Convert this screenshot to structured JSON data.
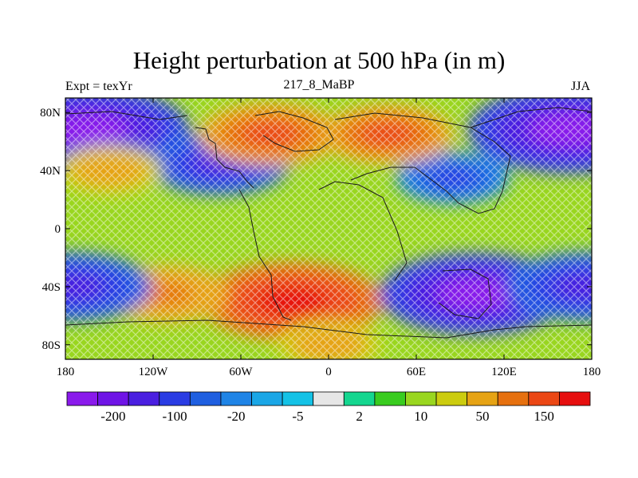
{
  "header": {
    "title": "Height perturbation at 500 hPa (in m)",
    "left": "Expt = texYr",
    "center": "217_8_MaBP",
    "right": "JJA"
  },
  "axes": {
    "x_ticks": [
      {
        "value": -180,
        "label": "180"
      },
      {
        "value": -120,
        "label": "120W"
      },
      {
        "value": -60,
        "label": "60W"
      },
      {
        "value": 0,
        "label": "0"
      },
      {
        "value": 60,
        "label": "60E"
      },
      {
        "value": 120,
        "label": "120E"
      },
      {
        "value": 180,
        "label": "180"
      }
    ],
    "y_ticks": [
      {
        "value": 80,
        "label": "80N"
      },
      {
        "value": 40,
        "label": "40N"
      },
      {
        "value": 0,
        "label": "0"
      },
      {
        "value": -40,
        "label": "40S"
      },
      {
        "value": -80,
        "label": "80S"
      }
    ],
    "lon_range": [
      -180,
      180
    ],
    "lat_range": [
      -90,
      90
    ]
  },
  "colorbar": {
    "colors": [
      "#8a1aeb",
      "#6f14e6",
      "#4a1fe0",
      "#2a3ce3",
      "#1f5fe0",
      "#1f84e6",
      "#1aa6e6",
      "#14c2e6",
      "#e6e6e6",
      "#14d68f",
      "#39cc1f",
      "#99d61f",
      "#cccc0f",
      "#e6a314",
      "#e6700f",
      "#eb4714",
      "#e60f0f"
    ],
    "labels": [
      "-200",
      "-100",
      "-20",
      "-5",
      "2",
      "10",
      "50",
      "150"
    ],
    "label_boundaries": [
      1,
      3,
      5,
      7,
      9,
      11,
      13,
      15
    ]
  },
  "chart_data": {
    "type": "heatmap",
    "title": "Height perturbation at 500 hPa (in m)",
    "subtitle": "217_8_MaBP",
    "xlabel": "",
    "ylabel": "",
    "xlim": [
      -180,
      180
    ],
    "ylim": [
      -90,
      90
    ],
    "units": "m",
    "levels": [
      -200,
      -100,
      -20,
      -5,
      2,
      10,
      50,
      150
    ],
    "anomalies": [
      {
        "lon": -165,
        "lat": 68,
        "value": -250
      },
      {
        "lon": 165,
        "lat": 68,
        "value": -250
      },
      {
        "lon": -75,
        "lat": 45,
        "value": -120
      },
      {
        "lon": 85,
        "lat": 35,
        "value": -60
      },
      {
        "lon": -40,
        "lat": 65,
        "value": 120
      },
      {
        "lon": 40,
        "lat": 65,
        "value": 100
      },
      {
        "lon": -150,
        "lat": 40,
        "value": 40
      },
      {
        "lon": -25,
        "lat": -50,
        "value": 200
      },
      {
        "lon": -110,
        "lat": -45,
        "value": 80
      },
      {
        "lon": 100,
        "lat": -45,
        "value": -220
      },
      {
        "lon": -175,
        "lat": -40,
        "value": -150
      },
      {
        "lon": 175,
        "lat": -40,
        "value": -150
      },
      {
        "lon": 0,
        "lat": -80,
        "value": 40
      }
    ]
  }
}
